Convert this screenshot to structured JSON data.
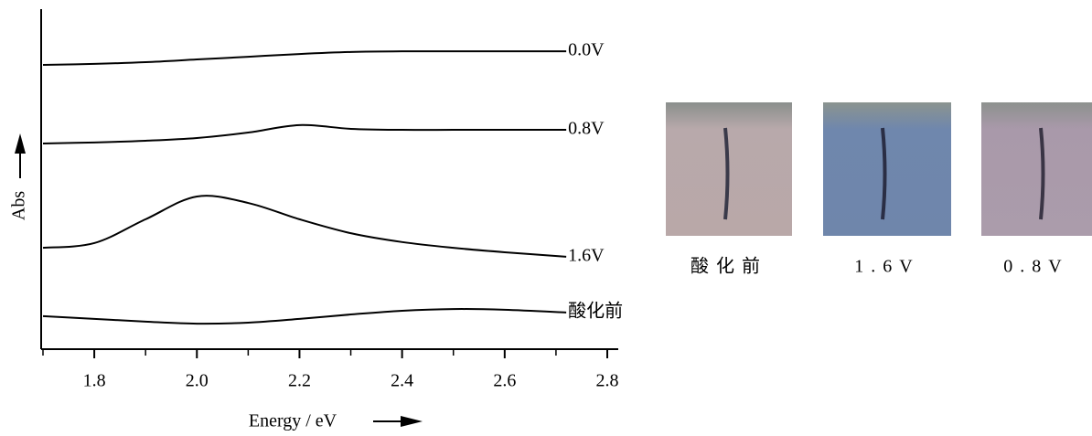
{
  "chart_data": {
    "type": "line",
    "xlabel": "Energy / eV",
    "ylabel": "Abs",
    "x": [
      1.7,
      1.8,
      1.9,
      2.0,
      2.1,
      2.2,
      2.3,
      2.4,
      2.5,
      2.6,
      2.72
    ],
    "series": [
      {
        "name": "0.0V",
        "color": "#000000",
        "values": [
          8.36,
          8.39,
          8.44,
          8.52,
          8.6,
          8.68,
          8.74,
          8.76,
          8.76,
          8.76,
          8.76
        ]
      },
      {
        "name": "0.8V",
        "color": "#000000",
        "values": [
          6.05,
          6.08,
          6.13,
          6.21,
          6.37,
          6.59,
          6.48,
          6.45,
          6.45,
          6.45,
          6.45
        ]
      },
      {
        "name": "1.6V",
        "color": "#000000",
        "values": [
          2.98,
          3.12,
          3.82,
          4.49,
          4.3,
          3.82,
          3.41,
          3.15,
          2.98,
          2.85,
          2.72
        ]
      },
      {
        "name": "酸化前",
        "color": "#000000",
        "values": [
          0.97,
          0.89,
          0.81,
          0.75,
          0.78,
          0.89,
          1.02,
          1.13,
          1.18,
          1.16,
          1.08
        ]
      }
    ],
    "xlim": [
      1.7,
      2.8
    ],
    "xticks": [
      1.8,
      {
        "value": 2,
        "label": "2.0"
      },
      2.2,
      2.4,
      2.6,
      2.8
    ],
    "xminorticks": [
      1.7,
      1.9,
      2.1,
      2.3,
      2.5,
      2.7
    ],
    "ylim": [
      0,
      10
    ]
  },
  "photos": {
    "labels": [
      "酸化前",
      "1.6V",
      "0.8V"
    ]
  }
}
